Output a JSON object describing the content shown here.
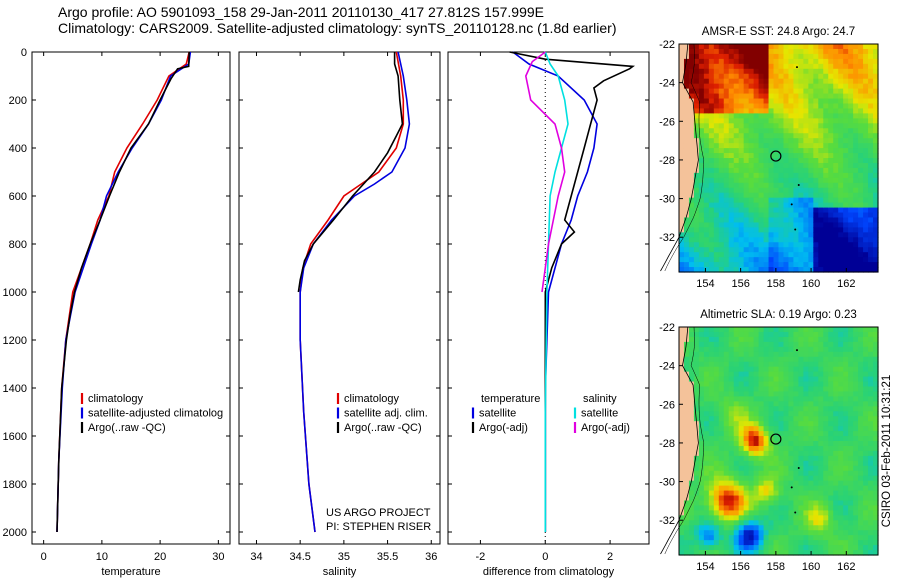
{
  "header": {
    "line1": "Argo profile: AO 5901093_158 29-Jan-2011 20110130_417 27.812S 157.999E",
    "line2": "Climatology: CARS2009. Satellite-adjusted climatology: synTS_20110128.nc (1.8d earlier)"
  },
  "colors": {
    "climatology": "#e00000",
    "satellite": "#0000e0",
    "argo": "#000000",
    "satellite_diff_salinity": "#00e0e0",
    "argo_diff_salinity": "#e000e0"
  },
  "chart_data": [
    {
      "type": "line",
      "xlabel": "temperature",
      "ylabel": "",
      "xlim": [
        -2,
        32
      ],
      "ylim": [
        2050,
        0
      ],
      "xticks": [
        0,
        10,
        20,
        30
      ],
      "yticks": [
        0,
        200,
        400,
        600,
        800,
        1000,
        1200,
        1400,
        1600,
        1800,
        2000
      ],
      "legend": {
        "items": [
          {
            "label": "climatology",
            "color": "#e00000"
          },
          {
            "label": "satellite-adjusted climatolog",
            "color": "#0000e0"
          },
          {
            "label": "Argo(..raw -QC)",
            "color": "#000000"
          }
        ]
      },
      "series": [
        {
          "name": "climatology",
          "color": "#e00000",
          "x": [
            25.0,
            24.5,
            21.5,
            19.5,
            17.0,
            14.3,
            12.2,
            11.2,
            9.3,
            8.0,
            6.5,
            5.0,
            4.4,
            3.8,
            3.1,
            2.6,
            2.3
          ],
          "y": [
            0,
            50,
            100,
            200,
            300,
            400,
            500,
            600,
            700,
            800,
            900,
            1000,
            1100,
            1200,
            1400,
            1700,
            2000
          ]
        },
        {
          "name": "satellite",
          "color": "#0000e0",
          "x": [
            25.2,
            24.9,
            21.8,
            20.2,
            18.0,
            15.2,
            12.8,
            10.8,
            9.7,
            8.2,
            6.8,
            5.4,
            4.6,
            3.8,
            3.2,
            2.6,
            2.3
          ],
          "y": [
            0,
            50,
            100,
            200,
            300,
            400,
            500,
            600,
            700,
            800,
            900,
            1000,
            1100,
            1200,
            1400,
            1700,
            2000
          ]
        },
        {
          "name": "Argo",
          "color": "#000000",
          "x": [
            25.0,
            24.9,
            23.0,
            21.9,
            20.0,
            18.0,
            15.0,
            13.0,
            11.3,
            9.7,
            8.0,
            6.5,
            5.3,
            4.5,
            3.9,
            3.1,
            2.6,
            2.3
          ],
          "y": [
            0,
            60,
            70,
            110,
            200,
            300,
            400,
            500,
            600,
            700,
            800,
            900,
            1000,
            1100,
            1200,
            1400,
            1700,
            2000
          ]
        }
      ]
    },
    {
      "type": "line",
      "xlabel": "salinity",
      "ylabel": "",
      "xlim": [
        33.8,
        36.1
      ],
      "ylim": [
        2050,
        0
      ],
      "xticks": [
        34,
        34.5,
        35,
        35.5,
        36
      ],
      "legend": {
        "items": [
          {
            "label": "climatology",
            "color": "#e00000"
          },
          {
            "label": "satellite adj. clim.",
            "color": "#0000e0"
          },
          {
            "label": "Argo(..raw -QC)",
            "color": "#000000"
          }
        ]
      },
      "annotation": [
        "US ARGO PROJECT",
        "PI: STEPHEN RISER"
      ],
      "series": [
        {
          "name": "climatology",
          "color": "#e00000",
          "x": [
            35.6,
            35.65,
            35.68,
            35.68,
            35.6,
            35.4,
            35.2,
            35.0,
            34.82,
            34.62,
            34.53,
            34.5,
            34.5,
            34.54,
            34.6,
            34.67
          ],
          "y": [
            0,
            100,
            200,
            300,
            400,
            500,
            550,
            600,
            700,
            800,
            900,
            1000,
            1200,
            1500,
            1800,
            2000
          ]
        },
        {
          "name": "satellite",
          "color": "#0000e0",
          "x": [
            35.62,
            35.68,
            35.72,
            35.75,
            35.7,
            35.55,
            35.35,
            35.12,
            34.86,
            34.65,
            34.54,
            34.5,
            34.5,
            34.54,
            34.6,
            34.67
          ],
          "y": [
            0,
            100,
            200,
            300,
            400,
            500,
            550,
            600,
            700,
            800,
            900,
            1000,
            1200,
            1500,
            1800,
            2000
          ]
        },
        {
          "name": "Argo",
          "color": "#000000",
          "x": [
            35.58,
            35.58,
            35.62,
            35.64,
            35.67,
            35.6,
            35.5,
            35.35,
            35.1,
            34.88,
            34.65,
            34.55,
            34.5,
            34.48
          ],
          "y": [
            0,
            50,
            100,
            200,
            300,
            350,
            420,
            500,
            600,
            700,
            800,
            870,
            950,
            1000
          ]
        }
      ]
    },
    {
      "type": "line",
      "xlabel": "difference from climatology",
      "ylabel": "",
      "xlim": [
        -3.0,
        3.2
      ],
      "ylim": [
        2050,
        0
      ],
      "xticks": [
        -2,
        0,
        2
      ],
      "legend": {
        "headers": [
          "temperature",
          "salinity"
        ],
        "items": [
          {
            "label": "satellite",
            "color": "#0000e0"
          },
          {
            "label": "Argo(-adj)",
            "color": "#000000"
          },
          {
            "label": "satellite",
            "color": "#00e0e0"
          },
          {
            "label": "Argo(-adj)",
            "color": "#e000e0"
          }
        ]
      },
      "series": [
        {
          "name": "temperature satellite",
          "color": "#0000e0",
          "x": [
            -1.0,
            -0.5,
            0.4,
            1.2,
            1.6,
            1.5,
            1.3,
            1.0,
            0.8,
            0.5,
            0.3,
            0.1,
            0.0,
            0.0
          ],
          "y": [
            0,
            50,
            100,
            200,
            300,
            400,
            500,
            600,
            700,
            800,
            900,
            1000,
            1400,
            2000
          ]
        },
        {
          "name": "temperature Argo(-adj)",
          "color": "#000000",
          "x": [
            -1.1,
            0.0,
            2.7,
            2.6,
            1.8,
            1.5,
            1.6,
            1.4,
            1.2,
            1.0,
            0.8,
            0.6,
            0.9,
            0.5,
            0.2,
            0.0,
            0.0
          ],
          "y": [
            0,
            30,
            60,
            70,
            120,
            150,
            200,
            300,
            400,
            500,
            600,
            700,
            750,
            800,
            900,
            1000,
            2000
          ]
        },
        {
          "name": "salinity satellite",
          "color": "#00e0e0",
          "x": [
            0.0,
            0.15,
            0.4,
            0.6,
            0.7,
            0.5,
            0.3,
            0.15,
            0.1,
            0.05,
            0.0,
            0.0
          ],
          "y": [
            0,
            50,
            100,
            200,
            300,
            400,
            500,
            600,
            800,
            1000,
            1500,
            2000
          ]
        },
        {
          "name": "salinity Argo(-adj)",
          "color": "#e000e0",
          "x": [
            0.0,
            -0.4,
            -0.6,
            -0.45,
            0.3,
            0.5,
            0.6,
            0.4,
            0.1,
            0.0,
            -0.1
          ],
          "y": [
            0,
            40,
            100,
            200,
            300,
            400,
            500,
            600,
            800,
            900,
            1000
          ]
        }
      ]
    },
    {
      "type": "heatmap",
      "title": "AMSR-E SST: 24.8 Argo: 24.7",
      "xlim": [
        152.5,
        163.8
      ],
      "ylim": [
        -33.8,
        -22
      ],
      "xticks": [
        154,
        156,
        158,
        160,
        162
      ],
      "yticks": [
        -22,
        -24,
        -26,
        -28,
        -30,
        -32
      ],
      "marker": {
        "lon": 158.0,
        "lat": -27.8
      }
    },
    {
      "type": "heatmap",
      "title": "Altimetric SLA: 0.19 Argo: 0.23",
      "xlim": [
        152.5,
        163.8
      ],
      "ylim": [
        -33.8,
        -22
      ],
      "xticks": [
        154,
        156,
        158,
        160,
        162
      ],
      "yticks": [
        -22,
        -24,
        -26,
        -28,
        -30,
        -32
      ],
      "marker": {
        "lon": 158.0,
        "lat": -27.8
      },
      "side_label": "CSIRO 03-Feb-2011 10:31:21"
    }
  ]
}
